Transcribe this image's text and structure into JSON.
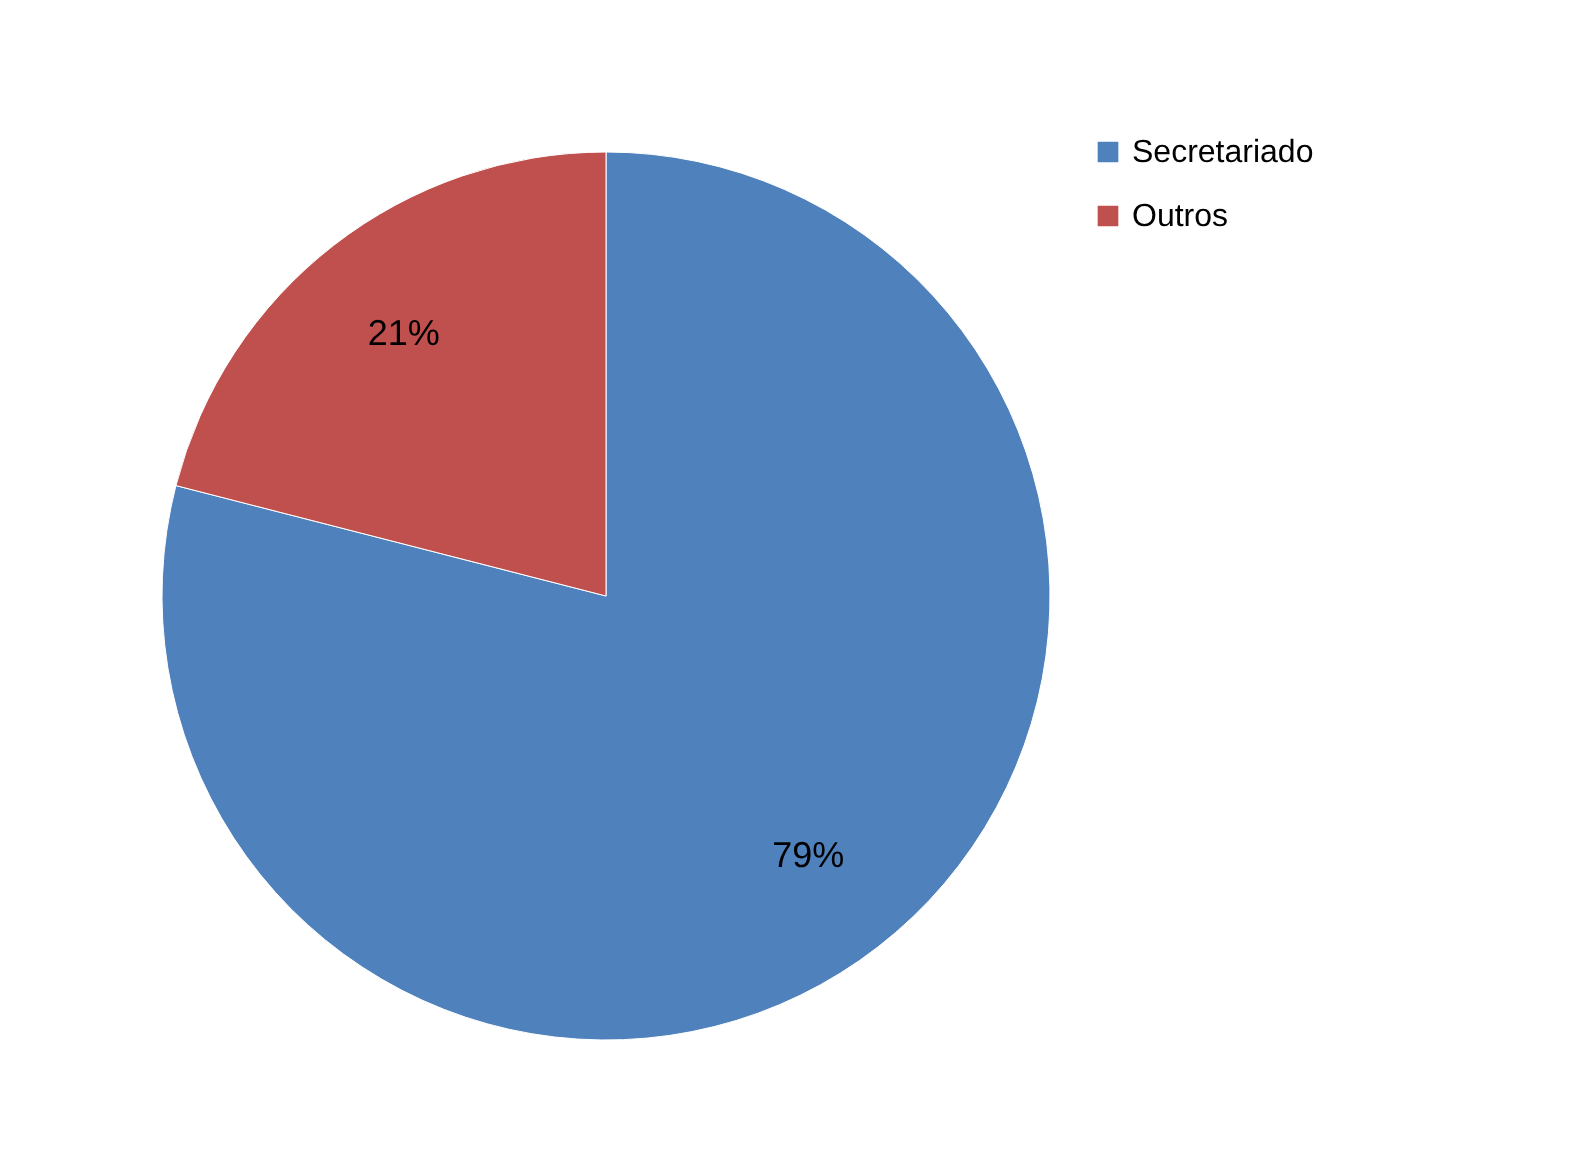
{
  "chart_data": {
    "type": "pie",
    "categories": [
      "Secretariado",
      "Outros"
    ],
    "values": [
      79,
      21
    ],
    "colors": [
      "#4f81bd",
      "#c0504d"
    ],
    "value_labels": [
      "79%",
      "21%"
    ],
    "legend": "right"
  }
}
